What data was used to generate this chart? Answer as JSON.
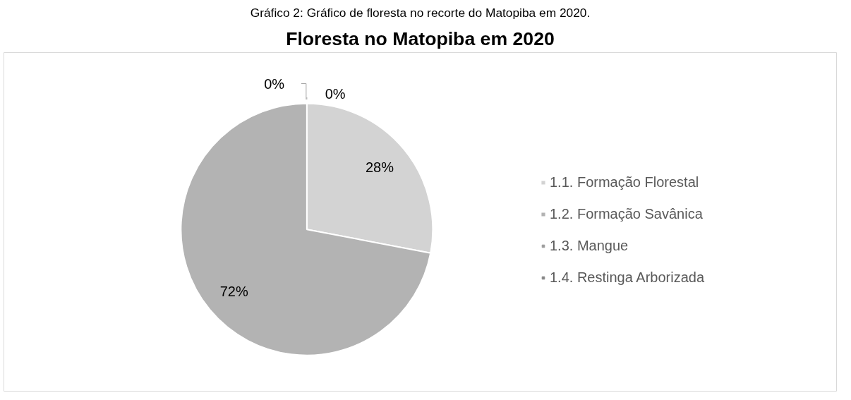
{
  "chart_data": {
    "type": "pie",
    "title": "Floresta no Matopiba em 2020",
    "annotations": [
      "Gráfico 2: Gráfico de floresta no recorte do Matopiba em 2020."
    ],
    "categories": [
      "1.1. Formação Florestal",
      "1.2. Formação Savânica",
      "1.3. Mangue",
      "1.4. Restinga Arborizada"
    ],
    "values": [
      28,
      72,
      0,
      0
    ],
    "colors": [
      "#d3d3d3",
      "#b3b3b3",
      "#9c9c9c",
      "#868686"
    ],
    "value_labels": [
      "28%",
      "72%",
      "0%",
      "0%"
    ],
    "legend": "right"
  }
}
